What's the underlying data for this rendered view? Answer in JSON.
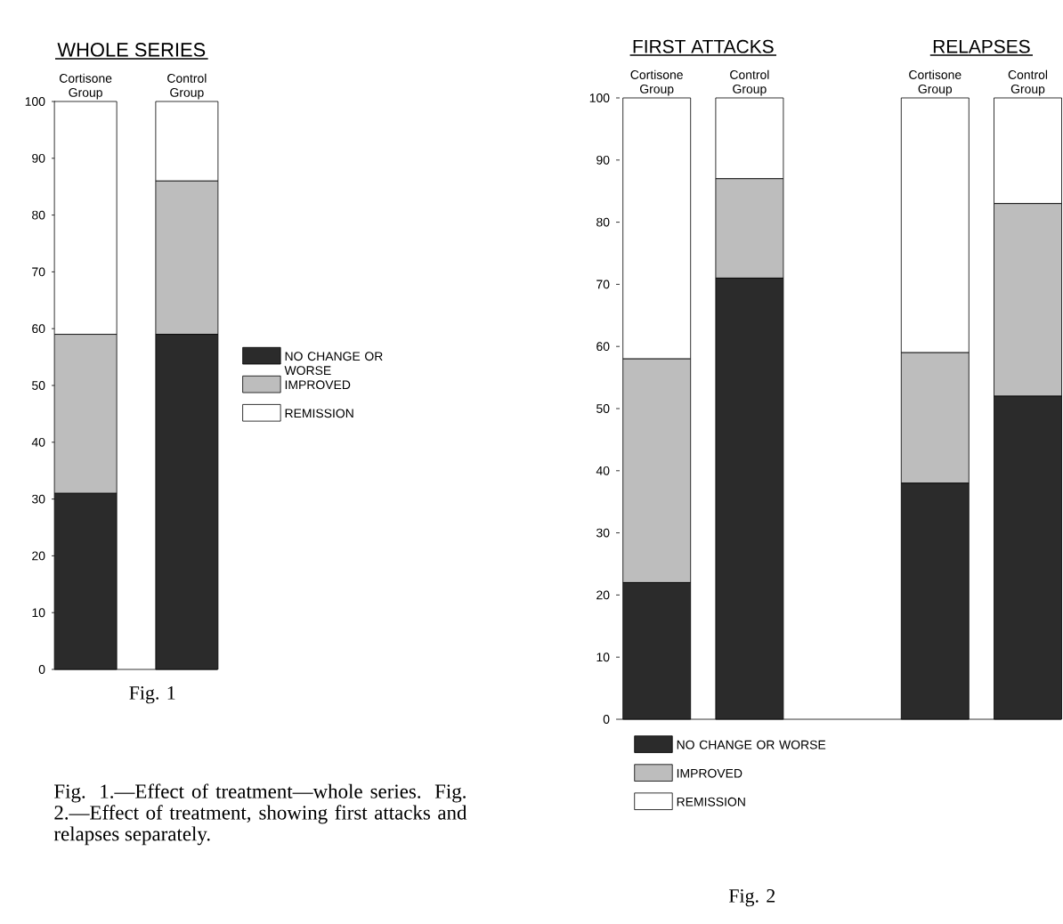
{
  "chart_data": [
    {
      "type": "bar",
      "title": "WHOLE SERIES",
      "categories": [
        "Cortisone Group",
        "Control Group"
      ],
      "stacked": true,
      "ylim": [
        0,
        100
      ],
      "yticks": [
        0,
        10,
        20,
        30,
        40,
        50,
        60,
        70,
        80,
        90,
        100
      ],
      "legend": "right",
      "series": [
        {
          "name": "NO CHANGE OR WORSE",
          "color": "#2b2b2b",
          "values": [
            31,
            59
          ]
        },
        {
          "name": "IMPROVED",
          "color": "#bdbdbd",
          "values": [
            28,
            27
          ]
        },
        {
          "name": "REMISSION",
          "color": "#ffffff",
          "values": [
            41,
            14
          ]
        }
      ],
      "annotations": [
        "Fig. 1",
        "Fig. 1.—Effect of treatment—whole series. Fig. 2.—Effect of treatment, showing first attacks and relapses separately."
      ]
    },
    {
      "type": "bar",
      "categories": [
        "Cortisone Group",
        "Control Group",
        null,
        "Cortisone Group",
        "Control Group"
      ],
      "stacked": true,
      "ylim": [
        0,
        100
      ],
      "yticks": [
        0,
        10,
        20,
        30,
        40,
        50,
        60,
        70,
        80,
        90,
        100
      ],
      "legend": "bottom",
      "series": [
        {
          "name": "NO CHANGE OR WORSE",
          "color": "#2b2b2b",
          "values": [
            22,
            71,
            null,
            38,
            52
          ]
        },
        {
          "name": "IMPROVED",
          "color": "#bdbdbd",
          "values": [
            36,
            16,
            null,
            21,
            31
          ]
        },
        {
          "name": "REMISSION",
          "color": "#ffffff",
          "values": [
            42,
            13,
            null,
            41,
            17
          ]
        }
      ],
      "annotations": [
        "FIRST ATTACKS",
        "RELAPSES",
        "Fig. 2"
      ]
    }
  ]
}
